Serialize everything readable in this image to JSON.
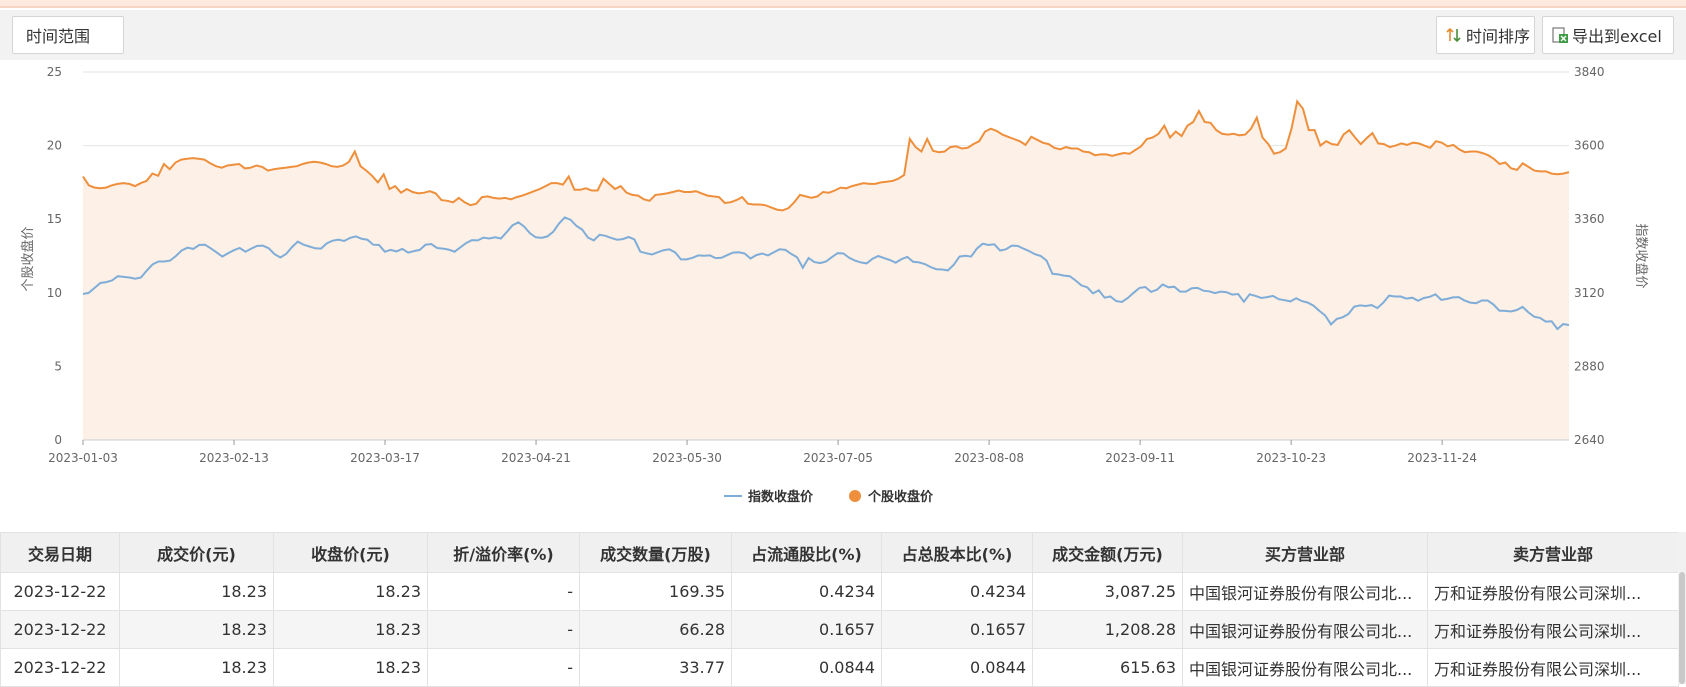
{
  "toolbar": {
    "range_label": "时间范围",
    "sort_label": "时间排序",
    "export_label": "导出到excel"
  },
  "colors": {
    "index": "#7fadd8",
    "stock": "#ee8f3c",
    "area": "#fdf0e7"
  },
  "chart_data": {
    "type": "line",
    "x_ticks": [
      "2023-01-03",
      "2023-02-13",
      "2023-03-17",
      "2023-04-21",
      "2023-05-30",
      "2023-07-05",
      "2023-08-08",
      "2023-09-11",
      "2023-10-23",
      "2023-11-24"
    ],
    "ylabel_left": "个股收盘价",
    "ylabel_right": "指数收盘价",
    "ylim_left": [
      0,
      25
    ],
    "ylim_right": [
      2640,
      3840
    ],
    "yticks_left": [
      0,
      5,
      10,
      15,
      20,
      25
    ],
    "yticks_right": [
      2640,
      2880,
      3120,
      3360,
      3600,
      3840
    ],
    "grid": true,
    "legend_position": "bottom-center",
    "series": [
      {
        "name": "指数收盘价",
        "axis": "right",
        "values": [
          3116,
          3120,
          3136,
          3152,
          3155,
          3160,
          3174,
          3172,
          3170,
          3166,
          3170,
          3193,
          3213,
          3222,
          3222,
          3225,
          3240,
          3258,
          3267,
          3263,
          3276,
          3277,
          3265,
          3252,
          3238,
          3249,
          3259,
          3266,
          3254,
          3264,
          3273,
          3274,
          3265,
          3246,
          3235,
          3247,
          3269,
          3287,
          3277,
          3271,
          3265,
          3264,
          3281,
          3290,
          3293,
          3289,
          3299,
          3304,
          3296,
          3293,
          3277,
          3276,
          3254,
          3260,
          3255,
          3263,
          3251,
          3256,
          3260,
          3277,
          3279,
          3266,
          3264,
          3261,
          3254,
          3268,
          3282,
          3292,
          3291,
          3300,
          3297,
          3301,
          3297,
          3318,
          3340,
          3350,
          3336,
          3314,
          3301,
          3299,
          3304,
          3319,
          3346,
          3366,
          3358,
          3338,
          3326,
          3300,
          3291,
          3309,
          3306,
          3299,
          3293,
          3295,
          3302,
          3294,
          3254,
          3249,
          3245,
          3252,
          3259,
          3262,
          3252,
          3229,
          3229,
          3234,
          3242,
          3241,
          3242,
          3233,
          3234,
          3243,
          3251,
          3252,
          3248,
          3232,
          3243,
          3248,
          3242,
          3252,
          3262,
          3260,
          3247,
          3236,
          3202,
          3233,
          3220,
          3217,
          3222,
          3236,
          3249,
          3248,
          3234,
          3225,
          3219,
          3216,
          3231,
          3240,
          3233,
          3227,
          3218,
          3230,
          3237,
          3221,
          3219,
          3214,
          3204,
          3197,
          3196,
          3193,
          3211,
          3238,
          3241,
          3238,
          3264,
          3280,
          3276,
          3278,
          3258,
          3262,
          3274,
          3273,
          3264,
          3256,
          3246,
          3240,
          3225,
          3182,
          3180,
          3176,
          3174,
          3160,
          3144,
          3138,
          3118,
          3128,
          3104,
          3108,
          3093,
          3090,
          3103,
          3120,
          3136,
          3139,
          3123,
          3130,
          3147,
          3138,
          3140,
          3124,
          3124,
          3135,
          3136,
          3127,
          3125,
          3119,
          3124,
          3122,
          3114,
          3116,
          3091,
          3115,
          3110,
          3103,
          3106,
          3110,
          3099,
          3096,
          3092,
          3102,
          3093,
          3088,
          3078,
          3061,
          3046,
          3017,
          3035,
          3040,
          3051,
          3075,
          3079,
          3077,
          3080,
          3070,
          3088,
          3111,
          3108,
          3108,
          3101,
          3104,
          3094,
          3103,
          3107,
          3115,
          3097,
          3100,
          3105,
          3106,
          3095,
          3088,
          3086,
          3095,
          3095,
          3082,
          3062,
          3061,
          3059,
          3064,
          3074,
          3056,
          3042,
          3038,
          3026,
          3027,
          3002,
          3018,
          3015
        ]
      },
      {
        "name": "个股收盘价",
        "values": [
          17.9,
          17.3,
          17.15,
          17.1,
          17.15,
          17.3,
          17.4,
          17.45,
          17.4,
          17.25,
          17.45,
          17.6,
          18.1,
          17.95,
          18.75,
          18.4,
          18.85,
          19.05,
          19.1,
          19.15,
          19.1,
          19.05,
          18.8,
          18.6,
          18.5,
          18.65,
          18.7,
          18.75,
          18.45,
          18.5,
          18.65,
          18.55,
          18.3,
          18.4,
          18.45,
          18.5,
          18.55,
          18.6,
          18.75,
          18.85,
          18.9,
          18.85,
          18.75,
          18.6,
          18.55,
          18.65,
          18.9,
          19.6,
          18.6,
          18.3,
          17.95,
          17.5,
          18.05,
          17.05,
          17.25,
          16.8,
          17.05,
          16.85,
          16.75,
          16.8,
          16.9,
          16.75,
          16.3,
          16.25,
          16.15,
          16.45,
          16.15,
          15.95,
          16.05,
          16.5,
          16.55,
          16.45,
          16.4,
          16.45,
          16.35,
          16.5,
          16.6,
          16.75,
          16.9,
          17.05,
          17.25,
          17.45,
          17.45,
          17.35,
          17.9,
          17.0,
          17.0,
          17.1,
          16.95,
          16.95,
          17.75,
          17.4,
          17.05,
          17.25,
          16.8,
          16.65,
          16.6,
          16.35,
          16.25,
          16.65,
          16.7,
          16.75,
          16.85,
          16.95,
          16.85,
          16.85,
          16.9,
          16.75,
          16.6,
          16.55,
          16.5,
          16.1,
          16.15,
          16.3,
          16.5,
          16.05,
          16.0,
          16.0,
          15.95,
          15.8,
          15.65,
          15.6,
          15.75,
          16.15,
          16.65,
          16.55,
          16.45,
          16.55,
          16.85,
          16.8,
          16.95,
          17.15,
          17.1,
          17.25,
          17.35,
          17.45,
          17.4,
          17.4,
          17.5,
          17.55,
          17.6,
          17.75,
          18.0,
          20.45,
          19.9,
          19.6,
          20.45,
          19.65,
          19.55,
          19.6,
          19.9,
          19.95,
          19.8,
          19.85,
          20.1,
          20.3,
          20.95,
          21.15,
          21.0,
          20.75,
          20.6,
          20.45,
          20.3,
          20.05,
          20.6,
          20.4,
          20.2,
          20.1,
          19.85,
          19.75,
          19.9,
          19.8,
          19.8,
          19.6,
          19.55,
          19.35,
          19.4,
          19.4,
          19.3,
          19.4,
          19.5,
          19.45,
          19.7,
          19.95,
          20.45,
          20.55,
          20.8,
          21.35,
          20.55,
          20.95,
          20.65,
          21.35,
          21.6,
          22.35,
          21.6,
          21.55,
          21.05,
          20.8,
          20.75,
          20.8,
          20.7,
          20.75,
          21.15,
          21.9,
          20.55,
          20.1,
          19.45,
          19.55,
          19.8,
          21.15,
          23.0,
          22.5,
          21.05,
          21.05,
          20.0,
          20.3,
          20.1,
          20.05,
          20.75,
          21.05,
          20.55,
          20.1,
          20.5,
          20.85,
          20.15,
          20.1,
          19.9,
          20.0,
          20.15,
          20.05,
          20.2,
          20.15,
          20.0,
          19.85,
          20.3,
          20.2,
          19.95,
          20.05,
          19.75,
          19.55,
          19.6,
          19.6,
          19.5,
          19.35,
          19.1,
          18.75,
          18.85,
          18.45,
          18.35,
          18.8,
          18.55,
          18.3,
          18.25,
          18.25,
          18.1,
          18.05,
          18.1,
          18.2
        ]
      }
    ]
  },
  "table": {
    "headers": [
      "交易日期",
      "成交价(元)",
      "收盘价(元)",
      "折/溢价率(%)",
      "成交数量(万股)",
      "占流通股比(%)",
      "占总股本比(%)",
      "成交金额(万元)",
      "买方营业部",
      "卖方营业部"
    ],
    "rows": [
      [
        "2023-12-22",
        "18.23",
        "18.23",
        "-",
        "169.35",
        "0.4234",
        "0.4234",
        "3,087.25",
        "中国银河证券股份有限公司北...",
        "万和证券股份有限公司深圳..."
      ],
      [
        "2023-12-22",
        "18.23",
        "18.23",
        "-",
        "66.28",
        "0.1657",
        "0.1657",
        "1,208.28",
        "中国银河证券股份有限公司北...",
        "万和证券股份有限公司深圳..."
      ],
      [
        "2023-12-22",
        "18.23",
        "18.23",
        "-",
        "33.77",
        "0.0844",
        "0.0844",
        "615.63",
        "中国银河证券股份有限公司北...",
        "万和证券股份有限公司深圳..."
      ]
    ]
  }
}
